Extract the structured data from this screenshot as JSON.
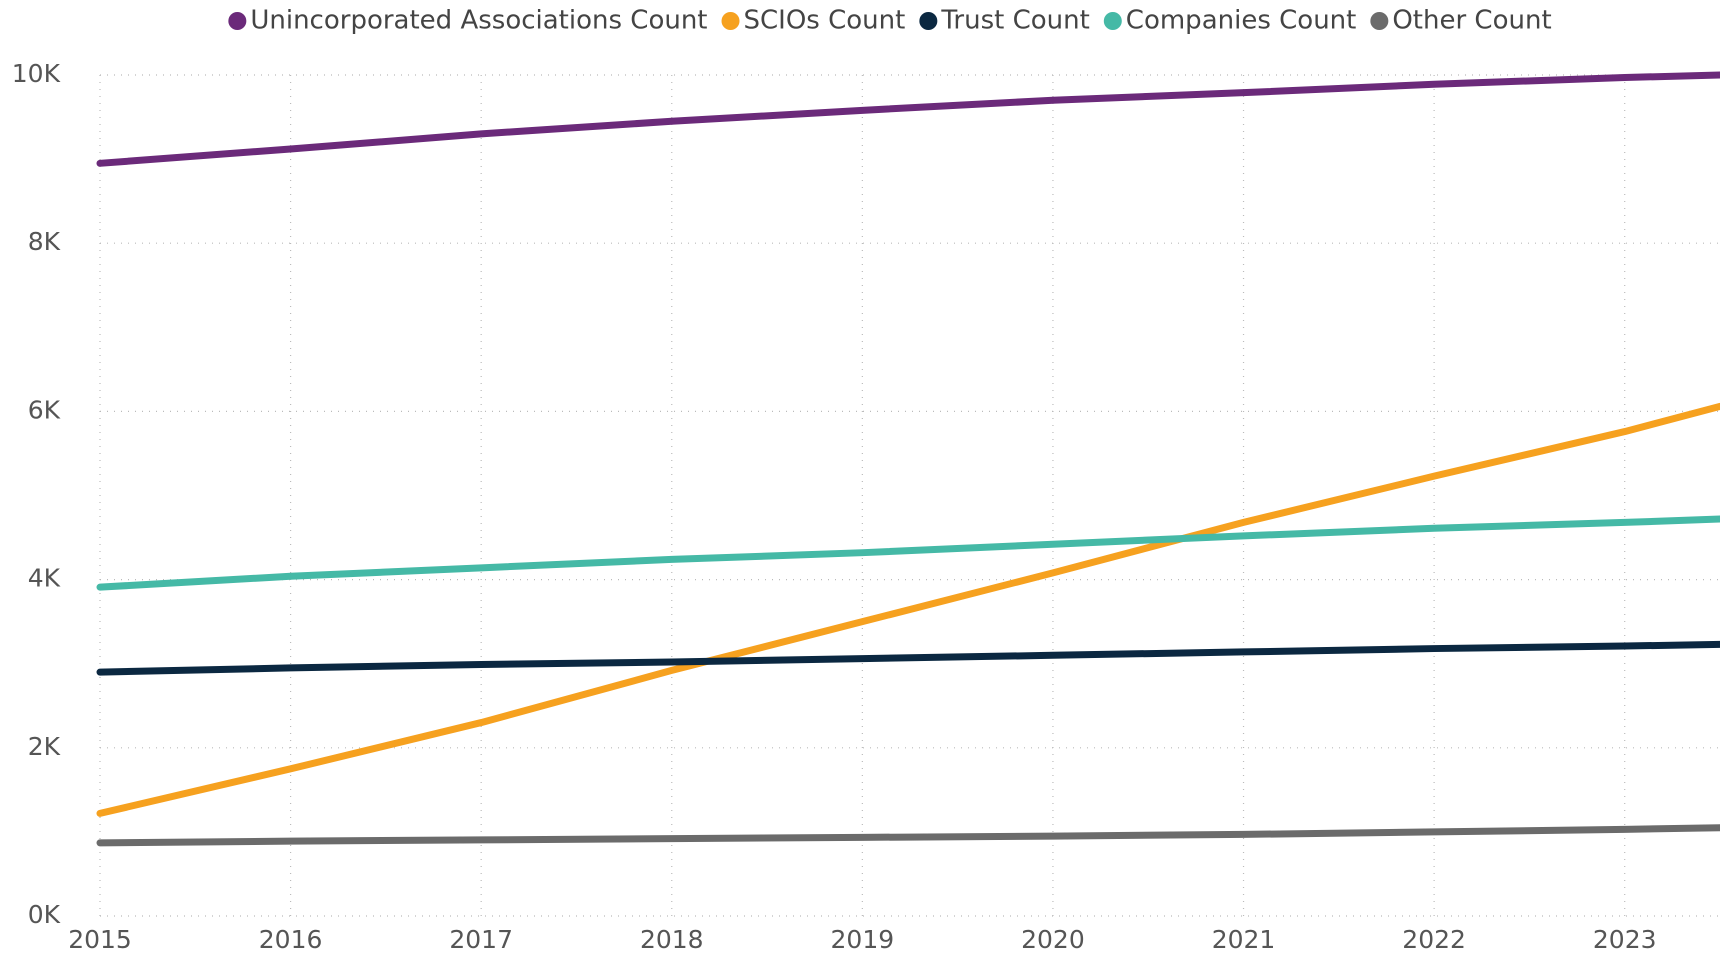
{
  "chart_data": {
    "type": "line",
    "x": [
      2015,
      2016,
      2017,
      2018,
      2019,
      2020,
      2021,
      2022,
      2023,
      2023.5
    ],
    "series": [
      {
        "name": "Unincorporated Associations Count",
        "color": "#6b2a7a",
        "values": [
          8950,
          9120,
          9300,
          9450,
          9580,
          9700,
          9790,
          9890,
          9970,
          10000
        ]
      },
      {
        "name": "SCIOs Count",
        "color": "#f6a11f",
        "values": [
          1220,
          1750,
          2300,
          2920,
          3500,
          4080,
          4680,
          5230,
          5760,
          6060
        ]
      },
      {
        "name": "Trust Count",
        "color": "#0b2841",
        "values": [
          2900,
          2950,
          2990,
          3020,
          3060,
          3100,
          3140,
          3180,
          3210,
          3230
        ]
      },
      {
        "name": "Companies Count",
        "color": "#45b9a6",
        "values": [
          3910,
          4040,
          4140,
          4240,
          4320,
          4420,
          4520,
          4610,
          4680,
          4720
        ]
      },
      {
        "name": "Other Count",
        "color": "#6b6b6b",
        "values": [
          870,
          890,
          905,
          920,
          935,
          950,
          970,
          1000,
          1030,
          1050
        ]
      }
    ],
    "xlim": [
      2015,
      2023.5
    ],
    "xticks": [
      2015,
      2016,
      2017,
      2018,
      2019,
      2020,
      2021,
      2022,
      2023
    ],
    "ylim": [
      0,
      10000
    ],
    "yticks": [
      {
        "value": 0,
        "label": "0K"
      },
      {
        "value": 2000,
        "label": "2K"
      },
      {
        "value": 4000,
        "label": "4K"
      },
      {
        "value": 6000,
        "label": "6K"
      },
      {
        "value": 8000,
        "label": "8K"
      },
      {
        "value": 10000,
        "label": "10K"
      }
    ],
    "grid": true
  }
}
